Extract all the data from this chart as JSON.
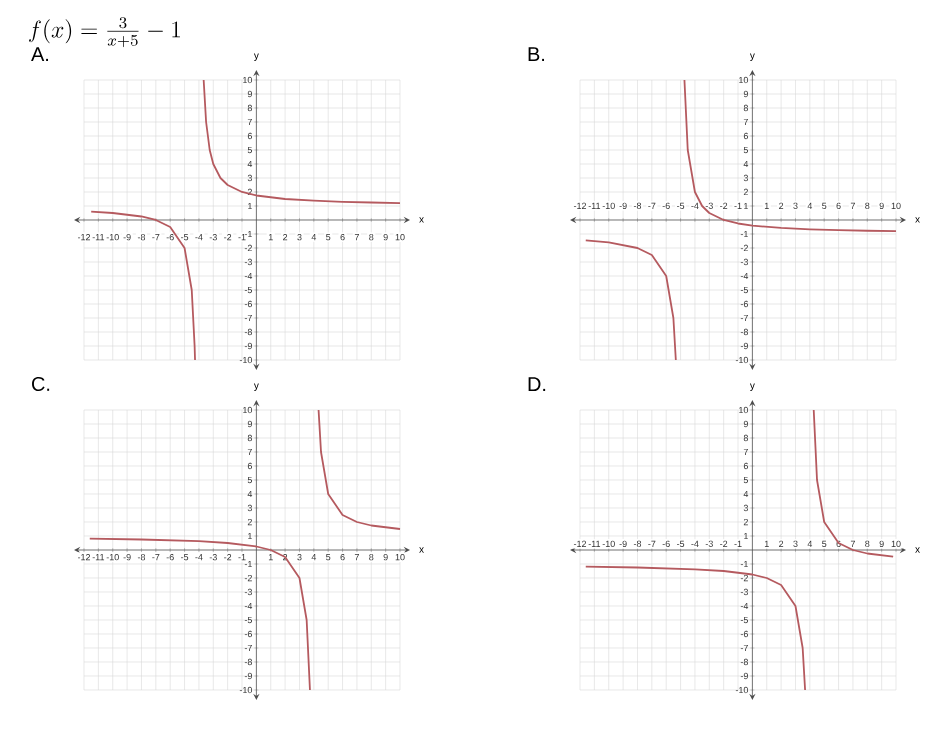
{
  "chart_data": [
    {
      "type": "line",
      "title": "A.",
      "annotations": [
        "f(x)=\\frac{3}{x+5}-1"
      ],
      "xlabel": "x",
      "ylabel": "y",
      "xlim": [
        -12,
        10
      ],
      "ylim": [
        -10,
        10
      ],
      "xticks": [
        -12,
        -11,
        -10,
        -9,
        -8,
        -7,
        -6,
        -5,
        -4,
        -3,
        -2,
        -1,
        1,
        2,
        3,
        4,
        5,
        6,
        7,
        8,
        9,
        10
      ],
      "yticks": [
        -10,
        -9,
        -8,
        -7,
        -6,
        -5,
        -4,
        -3,
        -2,
        -1,
        1,
        2,
        3,
        4,
        5,
        6,
        7,
        8,
        9,
        10
      ],
      "grid": true,
      "series": [
        {
          "color": "#b55a5f",
          "x": [
            -11.5,
            -10,
            -8,
            -7,
            -6,
            -5,
            -4.5,
            -4.3,
            -4.27
          ],
          "values": [
            0.6,
            0.5,
            0.25,
            0,
            -0.5,
            -2,
            -5,
            -9,
            -10
          ]
        },
        {
          "color": "#b55a5f",
          "x": [
            -3.67,
            -3.5,
            -3.25,
            -3,
            -2.5,
            -2,
            -1,
            0,
            2,
            4,
            6,
            8,
            10
          ],
          "values": [
            10,
            7,
            5,
            4,
            3,
            2.5,
            2,
            1.75,
            1.5,
            1.38,
            1.3,
            1.25,
            1.21
          ]
        }
      ]
    },
    {
      "type": "line",
      "title": "B.",
      "xlabel": "x",
      "ylabel": "y",
      "xlim": [
        -12,
        10
      ],
      "ylim": [
        -10,
        10
      ],
      "xticks": [
        -12,
        -11,
        -10,
        -9,
        -8,
        -7,
        -6,
        -5,
        -4,
        -3,
        -2,
        -1,
        1,
        2,
        3,
        4,
        5,
        6,
        7,
        8,
        9,
        10
      ],
      "yticks": [
        -10,
        -9,
        -8,
        -7,
        -6,
        -5,
        -4,
        -3,
        -2,
        -1,
        1,
        2,
        3,
        4,
        5,
        6,
        7,
        8,
        9,
        10
      ],
      "grid": true,
      "series": [
        {
          "color": "#b55a5f",
          "x": [
            -11.6,
            -10,
            -8,
            -7,
            -6,
            -5.5,
            -5.33
          ],
          "values": [
            -1.45,
            -1.6,
            -2,
            -2.5,
            -4,
            -7,
            -10
          ]
        },
        {
          "color": "#b55a5f",
          "x": [
            -4.73,
            -4.5,
            -4,
            -3.5,
            -3,
            -2,
            -1,
            0,
            2,
            4,
            6,
            8,
            10
          ],
          "values": [
            10,
            5,
            2,
            1,
            0.5,
            0,
            -0.25,
            -0.4,
            -0.57,
            -0.67,
            -0.73,
            -0.77,
            -0.8
          ]
        }
      ]
    },
    {
      "type": "line",
      "title": "C.",
      "xlabel": "x",
      "ylabel": "y",
      "xlim": [
        -12,
        10
      ],
      "ylim": [
        -10,
        10
      ],
      "xticks": [
        -12,
        -11,
        -10,
        -9,
        -8,
        -7,
        -6,
        -5,
        -4,
        -3,
        -2,
        -1,
        1,
        2,
        3,
        4,
        5,
        6,
        7,
        8,
        9,
        10
      ],
      "yticks": [
        -10,
        -9,
        -8,
        -7,
        -6,
        -5,
        -4,
        -3,
        -2,
        -1,
        1,
        2,
        3,
        4,
        5,
        6,
        7,
        8,
        9,
        10
      ],
      "grid": true,
      "series": [
        {
          "color": "#b55a5f",
          "x": [
            -11.6,
            -8,
            -4,
            -2,
            0,
            1,
            2,
            3,
            3.5,
            3.73
          ],
          "values": [
            0.81,
            0.75,
            0.63,
            0.5,
            0.25,
            0,
            -0.5,
            -2,
            -5,
            -10
          ]
        },
        {
          "color": "#b55a5f",
          "x": [
            4.33,
            4.5,
            5,
            6,
            7,
            8,
            10
          ],
          "values": [
            10,
            7,
            4,
            2.5,
            2,
            1.75,
            1.5
          ]
        }
      ]
    },
    {
      "type": "line",
      "title": "D.",
      "xlabel": "x",
      "ylabel": "y",
      "xlim": [
        -12,
        10
      ],
      "ylim": [
        -10,
        10
      ],
      "xticks": [
        -12,
        -11,
        -10,
        -9,
        -8,
        -7,
        -6,
        -5,
        -4,
        -3,
        -2,
        -1,
        1,
        2,
        3,
        4,
        5,
        6,
        7,
        8,
        9,
        10
      ],
      "yticks": [
        -10,
        -9,
        -8,
        -7,
        -6,
        -5,
        -4,
        -3,
        -2,
        -1,
        1,
        2,
        3,
        4,
        5,
        6,
        7,
        8,
        9,
        10
      ],
      "grid": true,
      "series": [
        {
          "color": "#b55a5f",
          "x": [
            -11.6,
            -8,
            -4,
            -2,
            0,
            1,
            2,
            3,
            3.5,
            3.67
          ],
          "values": [
            -1.19,
            -1.25,
            -1.38,
            -1.5,
            -1.75,
            -2,
            -2.5,
            -4,
            -7,
            -10
          ]
        },
        {
          "color": "#b55a5f",
          "x": [
            4.27,
            4.5,
            5,
            6,
            7,
            8,
            9.8
          ],
          "values": [
            10,
            5,
            2,
            0.5,
            0,
            -0.25,
            -0.48
          ]
        }
      ]
    }
  ]
}
